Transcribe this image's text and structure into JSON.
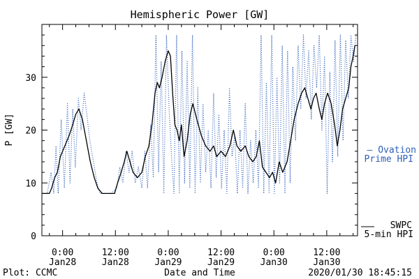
{
  "chart_data": {
    "type": "line",
    "title": "Hemispheric Power [GW]",
    "ylabel": "P [GW]",
    "xlabel": "Date and Time",
    "ylim": [
      0,
      40
    ],
    "xlim_hours": [
      -4.7,
      67.0
    ],
    "y_ticks": [
      0,
      10,
      20,
      30
    ],
    "x_ticks": [
      {
        "hour": 0,
        "time": "0:00",
        "day": "Jan28"
      },
      {
        "hour": 12,
        "time": "12:00",
        "day": "Jan28"
      },
      {
        "hour": 24,
        "time": "0:00",
        "day": "Jan29"
      },
      {
        "hour": 36,
        "time": "12:00",
        "day": "Jan29"
      },
      {
        "hour": 48,
        "time": "0:00",
        "day": "Jan30"
      },
      {
        "hour": 60,
        "time": "12:00",
        "day": "Jan30"
      }
    ],
    "series": [
      {
        "name": "SWPC 5-min HPI",
        "legend_lines": [
          "SWPC",
          "5-min HPI"
        ],
        "style": "solid",
        "color": "#000000",
        "points": [
          [
            -4.7,
            8
          ],
          [
            -3.0,
            8
          ],
          [
            -2.5,
            9
          ],
          [
            -1.8,
            11
          ],
          [
            -1.2,
            12
          ],
          [
            -0.5,
            15
          ],
          [
            0.5,
            17
          ],
          [
            1.5,
            19
          ],
          [
            2.3,
            21
          ],
          [
            3.0,
            23
          ],
          [
            3.7,
            24
          ],
          [
            4.5,
            22
          ],
          [
            5.4,
            18
          ],
          [
            6.3,
            14
          ],
          [
            7.2,
            11
          ],
          [
            8.0,
            9
          ],
          [
            9.0,
            8
          ],
          [
            10.5,
            8
          ],
          [
            11.8,
            8
          ],
          [
            12.5,
            10
          ],
          [
            13.3,
            12
          ],
          [
            14.0,
            14
          ],
          [
            14.6,
            16
          ],
          [
            15.3,
            14
          ],
          [
            16.0,
            12
          ],
          [
            17.0,
            11
          ],
          [
            18.0,
            12
          ],
          [
            18.8,
            15
          ],
          [
            19.6,
            17
          ],
          [
            20.3,
            21
          ],
          [
            21.0,
            27
          ],
          [
            21.5,
            29
          ],
          [
            22.0,
            28
          ],
          [
            22.6,
            30
          ],
          [
            23.3,
            33
          ],
          [
            24.0,
            35
          ],
          [
            24.5,
            34
          ],
          [
            25.0,
            27
          ],
          [
            25.5,
            21
          ],
          [
            26.0,
            20
          ],
          [
            26.5,
            18
          ],
          [
            27.0,
            21
          ],
          [
            27.6,
            15
          ],
          [
            28.3,
            18
          ],
          [
            29.0,
            23
          ],
          [
            29.6,
            25
          ],
          [
            30.5,
            22
          ],
          [
            31.5,
            19
          ],
          [
            32.5,
            17
          ],
          [
            33.5,
            16
          ],
          [
            34.3,
            17
          ],
          [
            35.0,
            15
          ],
          [
            36.0,
            16
          ],
          [
            37.0,
            15
          ],
          [
            38.0,
            17
          ],
          [
            38.8,
            20
          ],
          [
            39.6,
            17
          ],
          [
            40.5,
            16
          ],
          [
            41.5,
            17
          ],
          [
            42.3,
            15
          ],
          [
            43.2,
            14
          ],
          [
            44.0,
            15
          ],
          [
            44.7,
            18
          ],
          [
            45.4,
            13
          ],
          [
            46.2,
            12
          ],
          [
            47.0,
            11
          ],
          [
            47.7,
            12
          ],
          [
            48.4,
            10
          ],
          [
            49.2,
            14
          ],
          [
            50.0,
            12
          ],
          [
            51.0,
            14
          ],
          [
            51.8,
            18
          ],
          [
            52.6,
            22
          ],
          [
            53.5,
            25
          ],
          [
            54.3,
            27
          ],
          [
            55.0,
            28
          ],
          [
            55.7,
            26
          ],
          [
            56.4,
            24
          ],
          [
            57.0,
            26
          ],
          [
            57.6,
            27
          ],
          [
            58.3,
            24
          ],
          [
            58.9,
            22
          ],
          [
            59.5,
            25
          ],
          [
            60.2,
            27
          ],
          [
            61.0,
            25
          ],
          [
            61.8,
            21
          ],
          [
            62.4,
            17
          ],
          [
            63.0,
            20
          ],
          [
            63.6,
            24
          ],
          [
            64.3,
            26
          ],
          [
            65.0,
            28
          ],
          [
            65.5,
            32
          ],
          [
            66.0,
            34
          ],
          [
            66.4,
            36
          ]
        ]
      },
      {
        "name": "Ovation Prime HPI",
        "legend_lines": [
          "— Ovation",
          "Prime HPI"
        ],
        "style": "dotted",
        "color": "#2f5fb8",
        "points": [
          [
            -4.7,
            8
          ],
          [
            -3.5,
            8
          ],
          [
            -2.6,
            12
          ],
          [
            -2.0,
            8
          ],
          [
            -1.5,
            17
          ],
          [
            -1.0,
            8
          ],
          [
            -0.3,
            22
          ],
          [
            0.4,
            9
          ],
          [
            1.1,
            25
          ],
          [
            1.7,
            10
          ],
          [
            2.3,
            24
          ],
          [
            2.9,
            13
          ],
          [
            3.6,
            26
          ],
          [
            4.2,
            20
          ],
          [
            4.9,
            27
          ],
          [
            5.5,
            23
          ],
          [
            6.2,
            18
          ],
          [
            7.0,
            14
          ],
          [
            7.8,
            10
          ],
          [
            8.5,
            8
          ],
          [
            9.5,
            8
          ],
          [
            11.0,
            8
          ],
          [
            12.3,
            9
          ],
          [
            13.0,
            13
          ],
          [
            13.7,
            10
          ],
          [
            14.4,
            16
          ],
          [
            15.1,
            12
          ],
          [
            15.8,
            16
          ],
          [
            16.5,
            10
          ],
          [
            17.2,
            13
          ],
          [
            18.0,
            9
          ],
          [
            18.7,
            16
          ],
          [
            19.3,
            9
          ],
          [
            20.0,
            21
          ],
          [
            20.6,
            11
          ],
          [
            21.2,
            38
          ],
          [
            21.8,
            12
          ],
          [
            22.4,
            33
          ],
          [
            23.0,
            8
          ],
          [
            23.6,
            38
          ],
          [
            24.2,
            24
          ],
          [
            24.8,
            14
          ],
          [
            25.3,
            8
          ],
          [
            25.9,
            38
          ],
          [
            26.5,
            8
          ],
          [
            27.1,
            35
          ],
          [
            27.7,
            10
          ],
          [
            28.3,
            33
          ],
          [
            28.9,
            9
          ],
          [
            29.5,
            38
          ],
          [
            30.1,
            8
          ],
          [
            30.7,
            28
          ],
          [
            31.3,
            10
          ],
          [
            31.9,
            25
          ],
          [
            32.5,
            12
          ],
          [
            33.1,
            20
          ],
          [
            33.7,
            9
          ],
          [
            34.3,
            27
          ],
          [
            34.9,
            11
          ],
          [
            35.5,
            23
          ],
          [
            36.1,
            9
          ],
          [
            36.7,
            20
          ],
          [
            37.3,
            8
          ],
          [
            37.9,
            28
          ],
          [
            38.5,
            15
          ],
          [
            39.1,
            19
          ],
          [
            39.7,
            8
          ],
          [
            40.3,
            20
          ],
          [
            40.9,
            9
          ],
          [
            41.5,
            25
          ],
          [
            42.1,
            8
          ],
          [
            42.7,
            18
          ],
          [
            43.3,
            10
          ],
          [
            43.9,
            20
          ],
          [
            44.5,
            9
          ],
          [
            45.1,
            38
          ],
          [
            45.7,
            8
          ],
          [
            46.3,
            29
          ],
          [
            46.9,
            8
          ],
          [
            47.5,
            38
          ],
          [
            48.1,
            8
          ],
          [
            48.7,
            30
          ],
          [
            49.3,
            10
          ],
          [
            49.9,
            36
          ],
          [
            50.5,
            8
          ],
          [
            51.1,
            35
          ],
          [
            51.7,
            10
          ],
          [
            52.3,
            32
          ],
          [
            52.9,
            18
          ],
          [
            53.5,
            36
          ],
          [
            54.1,
            24
          ],
          [
            54.7,
            38
          ],
          [
            55.3,
            26
          ],
          [
            55.9,
            35
          ],
          [
            56.5,
            22
          ],
          [
            57.1,
            36
          ],
          [
            57.7,
            28
          ],
          [
            58.3,
            38
          ],
          [
            58.9,
            20
          ],
          [
            59.5,
            34
          ],
          [
            60.1,
            8
          ],
          [
            60.7,
            31
          ],
          [
            61.3,
            14
          ],
          [
            61.9,
            37
          ],
          [
            62.5,
            15
          ],
          [
            63.1,
            38
          ],
          [
            63.7,
            18
          ],
          [
            64.3,
            37
          ],
          [
            64.9,
            26
          ],
          [
            65.5,
            38
          ],
          [
            66.1,
            33
          ],
          [
            66.6,
            38
          ]
        ]
      }
    ],
    "grid": false,
    "legend_placement": "outside-right"
  },
  "footer": {
    "credit": "Plot: CCMC",
    "timestamp": "2020/01/30 18:45:15"
  }
}
